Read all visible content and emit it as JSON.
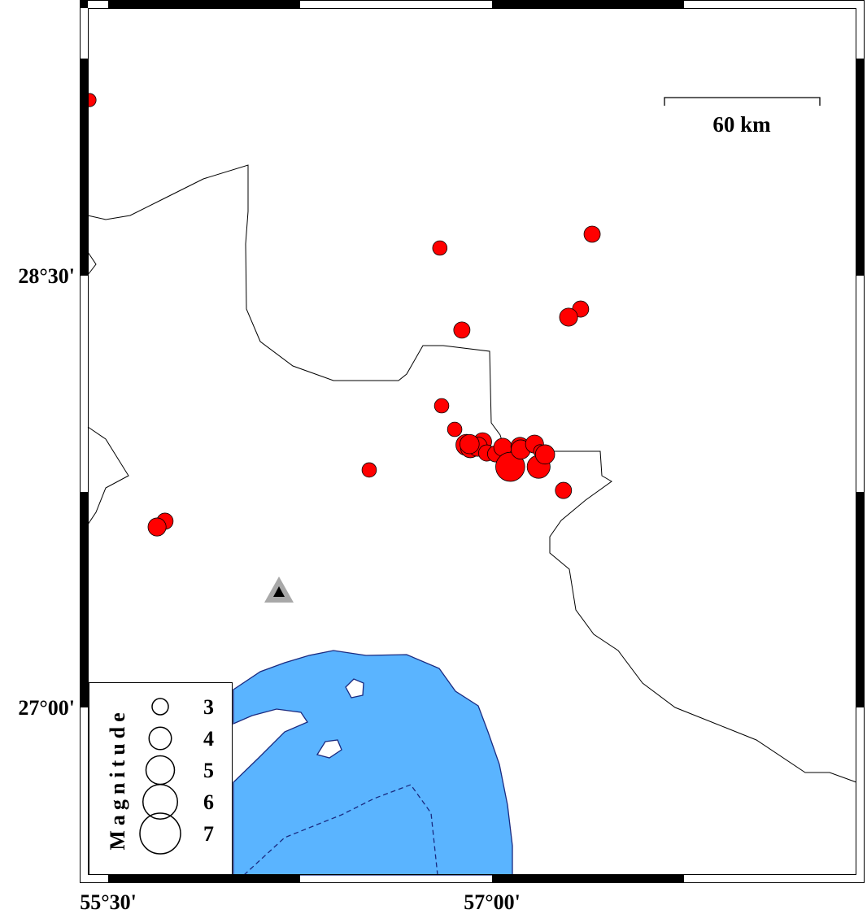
{
  "map": {
    "lon_range": [
      55.38,
      58.38
    ],
    "lat_range": [
      26.38,
      29.5
    ],
    "x_ticks": [
      {
        "value": 55.5,
        "label": "55°30'"
      },
      {
        "value": 57.0,
        "label": "57°00'"
      }
    ],
    "y_ticks": [
      {
        "value": 28.5,
        "label": "28°30'"
      },
      {
        "value": 27.0,
        "label": "27°00'"
      }
    ],
    "scale_bar": {
      "label": "60 km"
    },
    "colors": {
      "event": "#ff0000",
      "sea": "#5ab4ff",
      "coast": "#1a2a80",
      "station": "#a8a8a8"
    },
    "station": {
      "lon": 56.17,
      "lat": 27.39,
      "icon": "triangle-icon"
    },
    "events": [
      {
        "lon": 55.427,
        "lat": 29.11,
        "mag": 2.5
      },
      {
        "lon": 56.796,
        "lat": 28.596,
        "mag": 2.7
      },
      {
        "lon": 57.391,
        "lat": 28.644,
        "mag": 3.0
      },
      {
        "lon": 57.346,
        "lat": 28.384,
        "mag": 3.0
      },
      {
        "lon": 57.299,
        "lat": 28.356,
        "mag": 3.3
      },
      {
        "lon": 56.882,
        "lat": 28.311,
        "mag": 3.0
      },
      {
        "lon": 56.803,
        "lat": 28.048,
        "mag": 2.7
      },
      {
        "lon": 56.854,
        "lat": 27.966,
        "mag": 2.7
      },
      {
        "lon": 56.52,
        "lat": 27.825,
        "mag": 2.7
      },
      {
        "lon": 55.722,
        "lat": 27.647,
        "mag": 3.0
      },
      {
        "lon": 55.691,
        "lat": 27.627,
        "mag": 3.3
      },
      {
        "lon": 57.279,
        "lat": 27.754,
        "mag": 3.0
      },
      {
        "lon": 56.9,
        "lat": 27.912,
        "mag": 3.8
      },
      {
        "lon": 56.915,
        "lat": 27.901,
        "mag": 3.5
      },
      {
        "lon": 56.963,
        "lat": 27.923,
        "mag": 3.3
      },
      {
        "lon": 56.944,
        "lat": 27.906,
        "mag": 3.5
      },
      {
        "lon": 56.979,
        "lat": 27.884,
        "mag": 3.0
      },
      {
        "lon": 57.014,
        "lat": 27.881,
        "mag": 3.0
      },
      {
        "lon": 57.042,
        "lat": 27.904,
        "mag": 3.3
      },
      {
        "lon": 57.071,
        "lat": 27.836,
        "mag": 5.1
      },
      {
        "lon": 57.109,
        "lat": 27.907,
        "mag": 3.3
      },
      {
        "lon": 57.112,
        "lat": 27.896,
        "mag": 3.5
      },
      {
        "lon": 57.166,
        "lat": 27.915,
        "mag": 3.3
      },
      {
        "lon": 57.182,
        "lat": 27.836,
        "mag": 4.1
      },
      {
        "lon": 57.188,
        "lat": 27.89,
        "mag": 2.5
      },
      {
        "lon": 57.207,
        "lat": 27.879,
        "mag": 3.5
      },
      {
        "lon": 56.912,
        "lat": 27.915,
        "mag": 3.5
      }
    ],
    "legend": {
      "title": "Magnitude",
      "magnitudes": [
        3,
        4,
        5,
        6,
        7
      ]
    }
  }
}
